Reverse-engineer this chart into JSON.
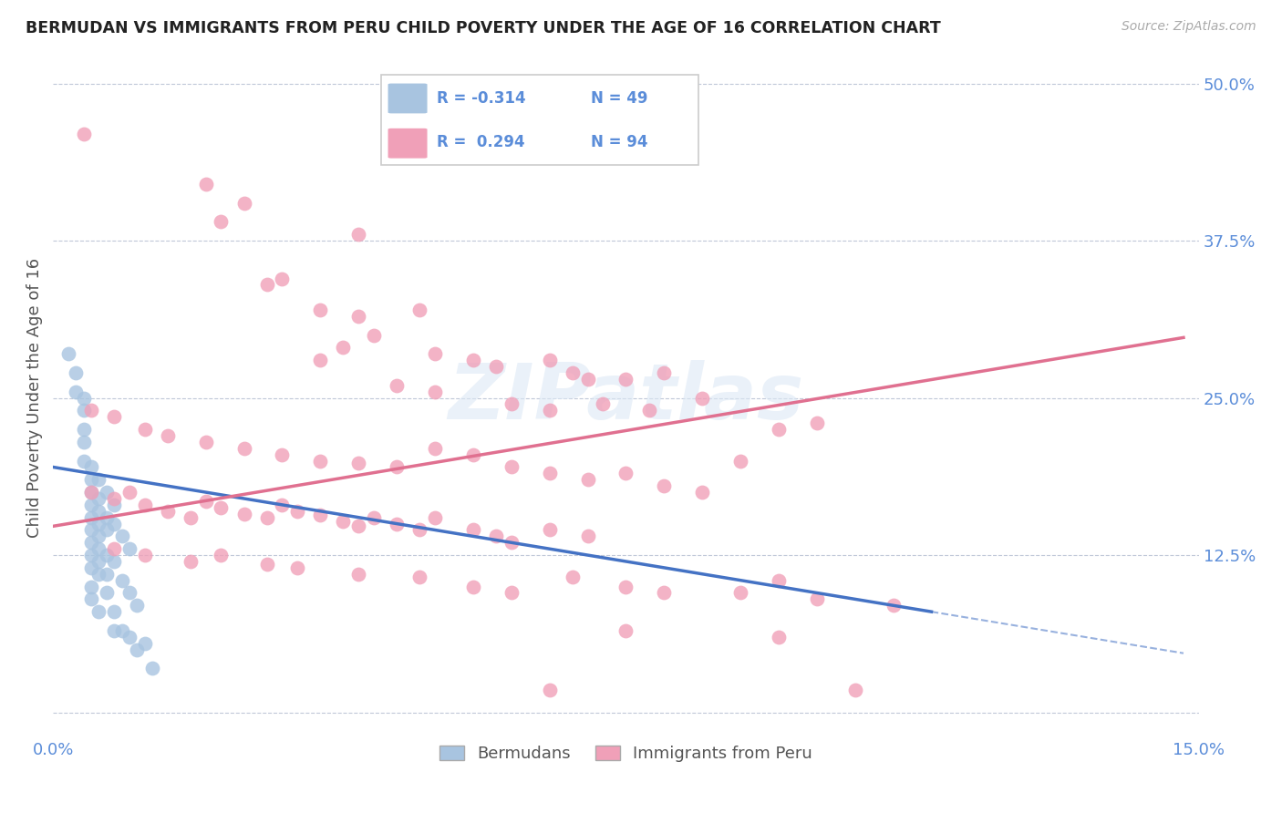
{
  "title": "BERMUDAN VS IMMIGRANTS FROM PERU CHILD POVERTY UNDER THE AGE OF 16 CORRELATION CHART",
  "source": "Source: ZipAtlas.com",
  "ylabel": "Child Poverty Under the Age of 16",
  "xlim": [
    0.0,
    0.15
  ],
  "ylim": [
    -0.02,
    0.52
  ],
  "yticks_right": [
    0.0,
    0.125,
    0.25,
    0.375,
    0.5
  ],
  "yticklabels_right": [
    "",
    "12.5%",
    "25.0%",
    "37.5%",
    "50.0%"
  ],
  "legend1_label": "Bermudans",
  "legend2_label": "Immigrants from Peru",
  "R_blue": -0.314,
  "N_blue": 49,
  "R_pink": 0.294,
  "N_pink": 94,
  "blue_color": "#a8c4e0",
  "pink_color": "#f0a0b8",
  "line_blue_color": "#4472c4",
  "line_pink_color": "#e07090",
  "watermark": "ZIPatlas",
  "blue_points": [
    [
      0.002,
      0.285
    ],
    [
      0.003,
      0.27
    ],
    [
      0.003,
      0.255
    ],
    [
      0.004,
      0.25
    ],
    [
      0.004,
      0.24
    ],
    [
      0.004,
      0.225
    ],
    [
      0.004,
      0.215
    ],
    [
      0.004,
      0.2
    ],
    [
      0.005,
      0.195
    ],
    [
      0.005,
      0.185
    ],
    [
      0.005,
      0.175
    ],
    [
      0.005,
      0.165
    ],
    [
      0.005,
      0.155
    ],
    [
      0.005,
      0.145
    ],
    [
      0.005,
      0.135
    ],
    [
      0.005,
      0.125
    ],
    [
      0.005,
      0.115
    ],
    [
      0.005,
      0.1
    ],
    [
      0.005,
      0.09
    ],
    [
      0.006,
      0.185
    ],
    [
      0.006,
      0.17
    ],
    [
      0.006,
      0.16
    ],
    [
      0.006,
      0.15
    ],
    [
      0.006,
      0.14
    ],
    [
      0.006,
      0.13
    ],
    [
      0.006,
      0.12
    ],
    [
      0.006,
      0.11
    ],
    [
      0.006,
      0.08
    ],
    [
      0.007,
      0.175
    ],
    [
      0.007,
      0.155
    ],
    [
      0.007,
      0.145
    ],
    [
      0.007,
      0.125
    ],
    [
      0.007,
      0.11
    ],
    [
      0.007,
      0.095
    ],
    [
      0.008,
      0.165
    ],
    [
      0.008,
      0.15
    ],
    [
      0.008,
      0.12
    ],
    [
      0.008,
      0.08
    ],
    [
      0.008,
      0.065
    ],
    [
      0.009,
      0.14
    ],
    [
      0.009,
      0.105
    ],
    [
      0.009,
      0.065
    ],
    [
      0.01,
      0.13
    ],
    [
      0.01,
      0.095
    ],
    [
      0.01,
      0.06
    ],
    [
      0.011,
      0.085
    ],
    [
      0.011,
      0.05
    ],
    [
      0.012,
      0.055
    ],
    [
      0.013,
      0.035
    ]
  ],
  "pink_points": [
    [
      0.004,
      0.46
    ],
    [
      0.02,
      0.42
    ],
    [
      0.025,
      0.405
    ],
    [
      0.022,
      0.39
    ],
    [
      0.03,
      0.345
    ],
    [
      0.028,
      0.34
    ],
    [
      0.04,
      0.38
    ],
    [
      0.035,
      0.32
    ],
    [
      0.04,
      0.315
    ],
    [
      0.048,
      0.32
    ],
    [
      0.042,
      0.3
    ],
    [
      0.038,
      0.29
    ],
    [
      0.035,
      0.28
    ],
    [
      0.05,
      0.285
    ],
    [
      0.055,
      0.28
    ],
    [
      0.058,
      0.275
    ],
    [
      0.065,
      0.28
    ],
    [
      0.068,
      0.27
    ],
    [
      0.07,
      0.265
    ],
    [
      0.075,
      0.265
    ],
    [
      0.08,
      0.27
    ],
    [
      0.085,
      0.25
    ],
    [
      0.045,
      0.26
    ],
    [
      0.05,
      0.255
    ],
    [
      0.06,
      0.245
    ],
    [
      0.065,
      0.24
    ],
    [
      0.072,
      0.245
    ],
    [
      0.078,
      0.24
    ],
    [
      0.005,
      0.24
    ],
    [
      0.008,
      0.235
    ],
    [
      0.012,
      0.225
    ],
    [
      0.015,
      0.22
    ],
    [
      0.02,
      0.215
    ],
    [
      0.025,
      0.21
    ],
    [
      0.03,
      0.205
    ],
    [
      0.035,
      0.2
    ],
    [
      0.04,
      0.198
    ],
    [
      0.045,
      0.195
    ],
    [
      0.05,
      0.21
    ],
    [
      0.055,
      0.205
    ],
    [
      0.06,
      0.195
    ],
    [
      0.065,
      0.19
    ],
    [
      0.07,
      0.185
    ],
    [
      0.075,
      0.19
    ],
    [
      0.08,
      0.18
    ],
    [
      0.085,
      0.175
    ],
    [
      0.09,
      0.2
    ],
    [
      0.095,
      0.225
    ],
    [
      0.1,
      0.23
    ],
    [
      0.005,
      0.175
    ],
    [
      0.008,
      0.17
    ],
    [
      0.01,
      0.175
    ],
    [
      0.012,
      0.165
    ],
    [
      0.015,
      0.16
    ],
    [
      0.018,
      0.155
    ],
    [
      0.02,
      0.168
    ],
    [
      0.022,
      0.163
    ],
    [
      0.025,
      0.158
    ],
    [
      0.028,
      0.155
    ],
    [
      0.03,
      0.165
    ],
    [
      0.032,
      0.16
    ],
    [
      0.035,
      0.157
    ],
    [
      0.038,
      0.152
    ],
    [
      0.04,
      0.148
    ],
    [
      0.042,
      0.155
    ],
    [
      0.045,
      0.15
    ],
    [
      0.048,
      0.145
    ],
    [
      0.05,
      0.155
    ],
    [
      0.055,
      0.145
    ],
    [
      0.058,
      0.14
    ],
    [
      0.06,
      0.135
    ],
    [
      0.065,
      0.145
    ],
    [
      0.07,
      0.14
    ],
    [
      0.008,
      0.13
    ],
    [
      0.012,
      0.125
    ],
    [
      0.018,
      0.12
    ],
    [
      0.022,
      0.125
    ],
    [
      0.028,
      0.118
    ],
    [
      0.032,
      0.115
    ],
    [
      0.04,
      0.11
    ],
    [
      0.048,
      0.108
    ],
    [
      0.055,
      0.1
    ],
    [
      0.06,
      0.095
    ],
    [
      0.068,
      0.108
    ],
    [
      0.075,
      0.1
    ],
    [
      0.08,
      0.095
    ],
    [
      0.09,
      0.095
    ],
    [
      0.095,
      0.105
    ],
    [
      0.1,
      0.09
    ],
    [
      0.11,
      0.085
    ],
    [
      0.075,
      0.065
    ],
    [
      0.095,
      0.06
    ],
    [
      0.065,
      0.018
    ],
    [
      0.105,
      0.018
    ]
  ],
  "blue_line": {
    "x0": 0.0,
    "y0": 0.195,
    "x1": 0.115,
    "y1": 0.08
  },
  "blue_line_ext": {
    "x0": 0.115,
    "y0": 0.08,
    "x1": 0.148,
    "y1": 0.047
  },
  "pink_line": {
    "x0": 0.0,
    "y0": 0.148,
    "x1": 0.148,
    "y1": 0.298
  }
}
